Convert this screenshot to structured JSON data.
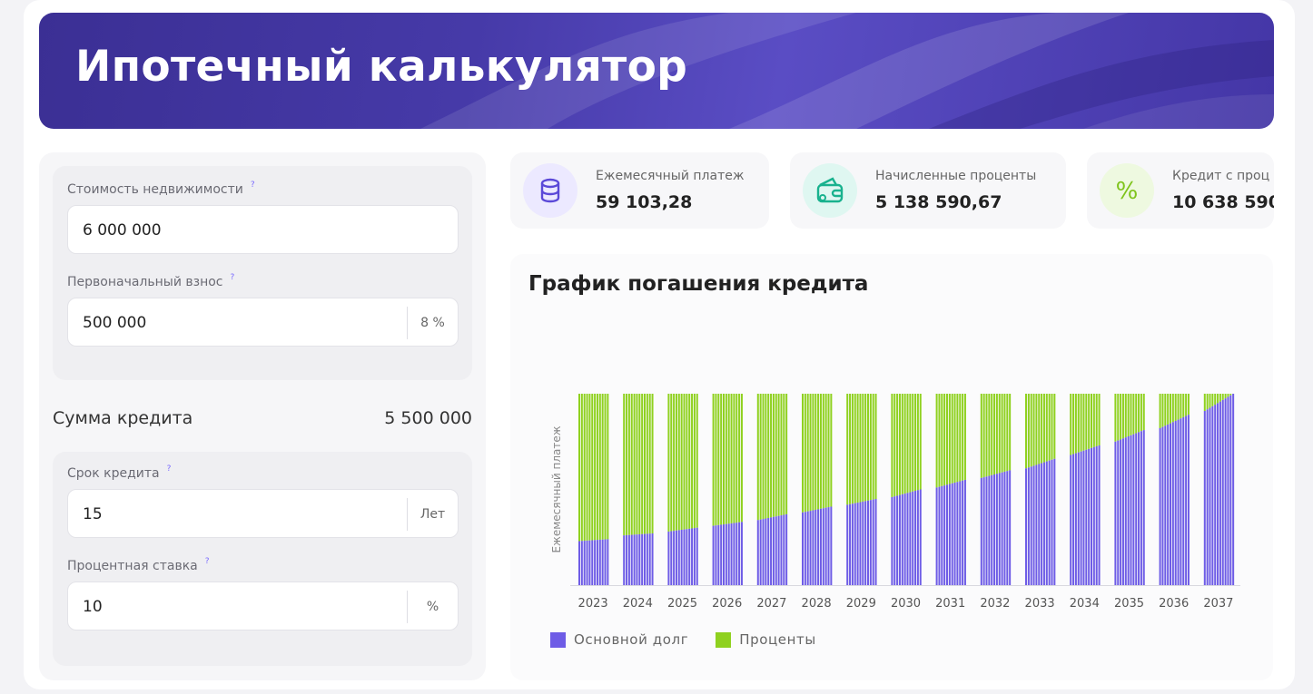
{
  "header": {
    "title": "Ипотечный калькулятор"
  },
  "form": {
    "property_cost": {
      "label": "Стоимость недвижимости",
      "value": "6 000 000"
    },
    "down_payment": {
      "label": "Первоначальный взнос",
      "value": "500 000",
      "percent": "8 %"
    },
    "loan_sum": {
      "label": "Сумма кредита",
      "value": "5 500 000"
    },
    "term": {
      "label": "Срок кредита",
      "value": "15",
      "unit": "Лет"
    },
    "rate": {
      "label": "Процентная ставка",
      "value": "10",
      "unit": "%"
    },
    "help_icon": "?"
  },
  "summary": {
    "monthly": {
      "title": "Ежемесячный платеж",
      "value": "59 103,28",
      "icon": "coins-icon",
      "color": "#ece9ff"
    },
    "interest": {
      "title": "Начисленные проценты",
      "value": "5 138 590,67",
      "icon": "wallet-icon",
      "color": "#dff7f1"
    },
    "total": {
      "title": "Кредит с проц",
      "value": "10 638 590,",
      "icon": "percent-icon",
      "color": "#eef9e0"
    }
  },
  "chart": {
    "title": "График погашения кредита"
  },
  "chart_data": {
    "type": "bar",
    "stacked": true,
    "ylabel": "Ежемесячный платеж",
    "categories": [
      "2023",
      "2024",
      "2025",
      "2026",
      "2027",
      "2028",
      "2029",
      "2030",
      "2031",
      "2032",
      "2033",
      "2034",
      "2035",
      "2036",
      "2037"
    ],
    "series": [
      {
        "name": "Основной долг",
        "color": "#6e5ce6",
        "share_start": [
          0.23,
          0.26,
          0.28,
          0.31,
          0.34,
          0.38,
          0.42,
          0.46,
          0.51,
          0.56,
          0.61,
          0.68,
          0.75,
          0.82,
          0.91
        ],
        "share_end": [
          0.24,
          0.27,
          0.3,
          0.33,
          0.37,
          0.41,
          0.45,
          0.5,
          0.55,
          0.6,
          0.66,
          0.73,
          0.81,
          0.89,
          1.0
        ]
      },
      {
        "name": "Проценты",
        "color": "#8fd11f"
      }
    ],
    "months_per_year": 12,
    "legend": "bottom-left"
  }
}
